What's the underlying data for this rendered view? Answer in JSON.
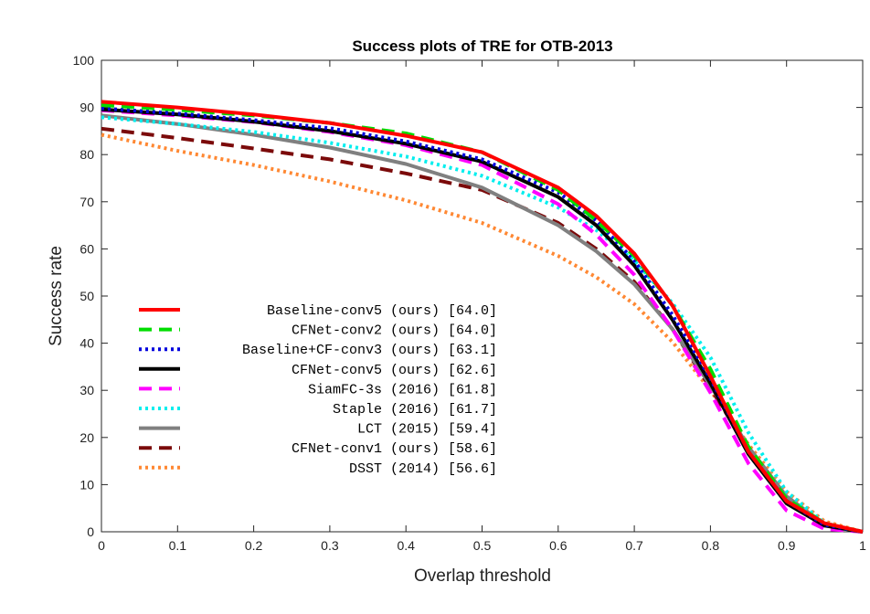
{
  "chart_data": {
    "type": "line",
    "title": "Success plots of TRE for OTB-2013",
    "xlabel": "Overlap threshold",
    "ylabel": "Success rate",
    "xlim": [
      0,
      1
    ],
    "ylim": [
      0,
      100
    ],
    "xticks": [
      "0",
      "0.1",
      "0.2",
      "0.3",
      "0.4",
      "0.5",
      "0.6",
      "0.7",
      "0.8",
      "0.9",
      "1"
    ],
    "yticks": [
      "0",
      "10",
      "20",
      "30",
      "40",
      "50",
      "60",
      "70",
      "80",
      "90",
      "100"
    ],
    "grid": false,
    "legend_position": "bottom-left",
    "x": [
      0,
      0.1,
      0.2,
      0.3,
      0.4,
      0.5,
      0.6,
      0.65,
      0.7,
      0.75,
      0.8,
      0.85,
      0.9,
      0.95,
      1.0
    ],
    "series": [
      {
        "name": "Baseline-conv5 (ours) [64.0]",
        "color": "#ff0000",
        "style": "solid",
        "width": 4,
        "values": [
          91.2,
          90.0,
          88.5,
          86.7,
          84.0,
          80.5,
          73.0,
          67.0,
          59.0,
          48.0,
          33.0,
          17.0,
          6.5,
          1.8,
          0.0
        ]
      },
      {
        "name": "CFNet-conv2 (ours) [64.0]",
        "color": "#00dd00",
        "style": "dashed",
        "width": 4,
        "values": [
          90.5,
          89.5,
          88.3,
          86.7,
          84.5,
          80.5,
          72.5,
          66.0,
          58.5,
          48.0,
          34.5,
          18.0,
          7.0,
          1.8,
          0.0
        ]
      },
      {
        "name": "Baseline+CF-conv3 (ours) [63.1]",
        "color": "#0000dd",
        "style": "dotted",
        "width": 4,
        "values": [
          89.8,
          88.7,
          87.3,
          85.6,
          82.8,
          79.0,
          72.0,
          66.0,
          57.5,
          46.0,
          32.5,
          17.0,
          6.5,
          1.5,
          0.0
        ]
      },
      {
        "name": "CFNet-conv5 (ours) [62.6]",
        "color": "#000000",
        "style": "solid",
        "width": 4,
        "values": [
          89.6,
          88.5,
          87.0,
          85.0,
          82.3,
          78.5,
          71.0,
          65.0,
          56.5,
          45.0,
          31.5,
          16.5,
          6.0,
          1.3,
          0.0
        ]
      },
      {
        "name": "SiamFC-3s (2016) [61.8]",
        "color": "#ff00ff",
        "style": "dashed",
        "width": 4,
        "values": [
          89.4,
          88.3,
          86.9,
          84.8,
          82.0,
          77.8,
          69.5,
          63.0,
          54.5,
          43.0,
          29.5,
          14.5,
          4.5,
          0.6,
          0.0
        ]
      },
      {
        "name": "Staple (2016) [61.7]",
        "color": "#00eeee",
        "style": "dotted",
        "width": 4,
        "values": [
          87.9,
          86.5,
          84.8,
          82.5,
          79.6,
          75.5,
          68.8,
          64.0,
          57.5,
          48.5,
          37.0,
          21.0,
          8.5,
          1.8,
          0.0
        ]
      },
      {
        "name": "LCT (2015) [59.4]",
        "color": "#808080",
        "style": "solid",
        "width": 4,
        "values": [
          88.3,
          86.5,
          84.2,
          81.5,
          78.0,
          73.0,
          65.0,
          59.5,
          52.5,
          43.0,
          31.0,
          18.0,
          7.5,
          1.6,
          0.0
        ]
      },
      {
        "name": "CFNet-conv1 (ours) [58.6]",
        "color": "#7b0a0a",
        "style": "dashed",
        "width": 4,
        "values": [
          85.5,
          83.5,
          81.3,
          79.0,
          76.0,
          72.5,
          65.5,
          60.0,
          53.0,
          43.0,
          30.5,
          17.5,
          7.0,
          1.3,
          0.0
        ]
      },
      {
        "name": "DSST (2014) [56.6]",
        "color": "#ff8833",
        "style": "dotted",
        "width": 4,
        "values": [
          84.2,
          80.8,
          77.8,
          74.3,
          70.3,
          65.5,
          58.5,
          54.0,
          48.3,
          40.3,
          30.0,
          18.5,
          8.5,
          2.2,
          0.0
        ]
      }
    ]
  }
}
